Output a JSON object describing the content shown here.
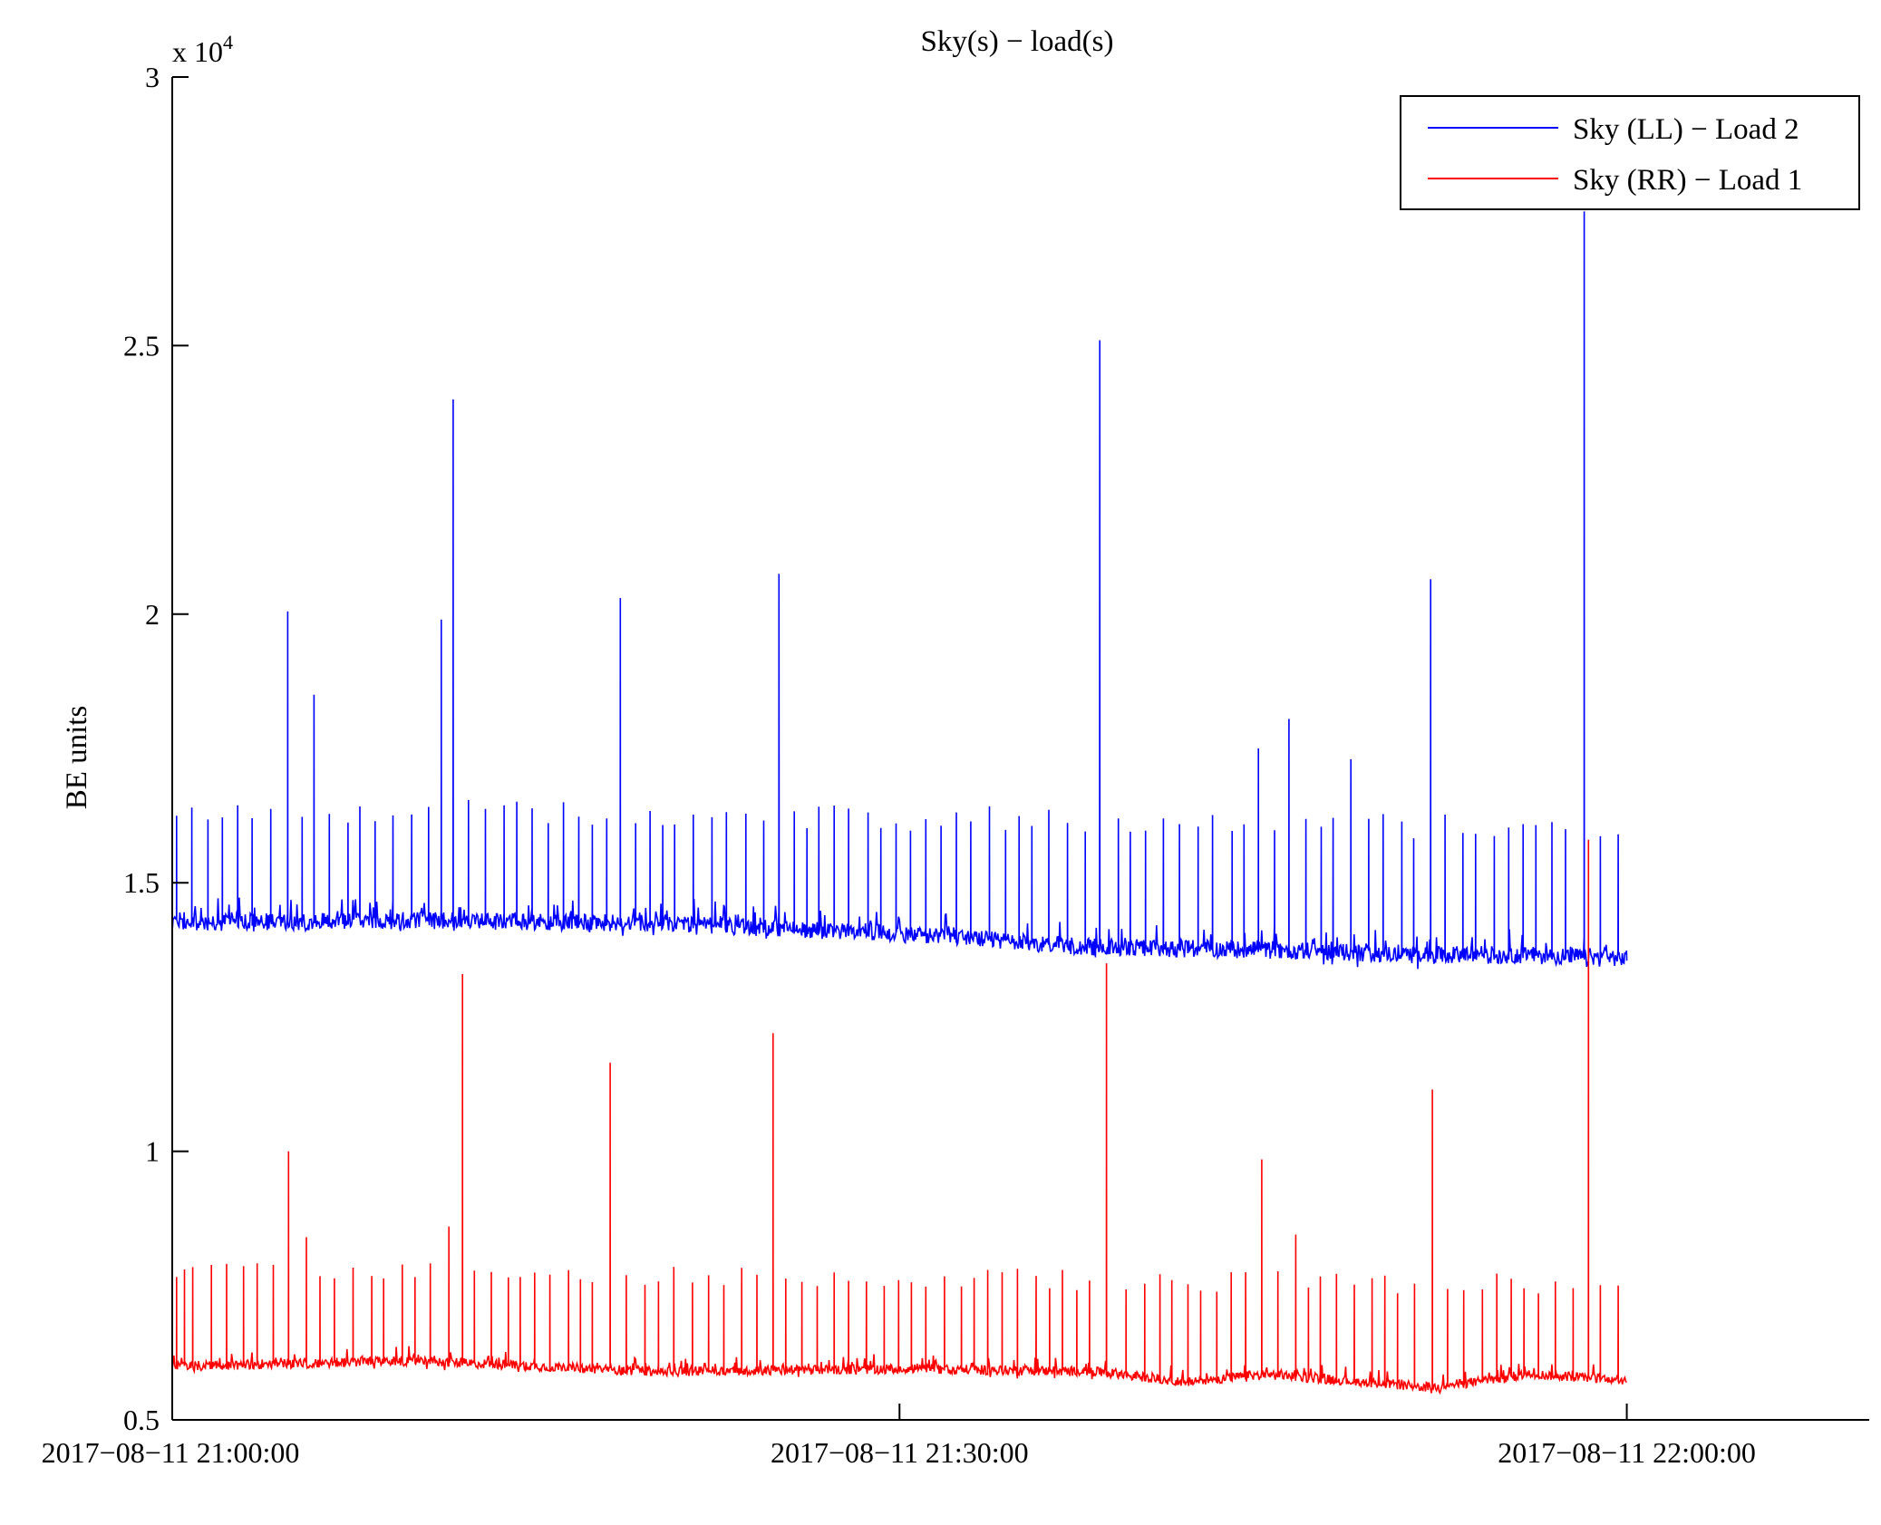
{
  "chart_data": {
    "type": "line",
    "title": "Sky(s) − load(s)",
    "xlabel": "",
    "ylabel": "BE units",
    "y_multiplier_base": "x 10",
    "y_multiplier_exp": "4",
    "y_scale": 10000,
    "ylim": [
      0.5,
      3
    ],
    "y_ticks": [
      0.5,
      1,
      1.5,
      2,
      2.5,
      3
    ],
    "y_tick_labels": [
      "0.5",
      "1",
      "1.5",
      "2",
      "2.5",
      "3"
    ],
    "x_unit": "minutes after 2017-08-11 21:00:00",
    "xlim": [
      0,
      70
    ],
    "x_ticks": [
      0,
      30,
      60
    ],
    "x_tick_labels": [
      "2017−08−11 21:00:00",
      "2017−08−11 21:30:00",
      "2017−08−11 22:00:00"
    ],
    "grid": false,
    "legend_position": "top-right",
    "series": [
      {
        "name": "Sky (LL) − Load 2",
        "color": "#0000ff",
        "baseline": [
          [
            0,
            14250
          ],
          [
            10,
            14300
          ],
          [
            20,
            14250
          ],
          [
            30,
            14050
          ],
          [
            38,
            13800
          ],
          [
            45,
            13750
          ],
          [
            52,
            13650
          ],
          [
            56,
            13650
          ],
          [
            60,
            13600
          ]
        ],
        "spikes": [
          [
            0.5,
            16400
          ],
          [
            4.9,
            20050
          ],
          [
            5.7,
            18500
          ],
          [
            11.2,
            19900
          ],
          [
            11.8,
            24000
          ],
          [
            18.3,
            20300
          ],
          [
            24.9,
            20750
          ],
          [
            38.4,
            25100
          ],
          [
            45.0,
            17500
          ],
          [
            46.3,
            18050
          ],
          [
            48.6,
            17300
          ],
          [
            51.7,
            20650
          ],
          [
            58.3,
            27500
          ],
          [
            59.7,
            15900
          ]
        ],
        "spike_height_typical": 16400,
        "end_value": 13550
      },
      {
        "name": "Sky (RR) − Load 1",
        "color": "#ff0000",
        "baseline": [
          [
            0,
            6000
          ],
          [
            10,
            6100
          ],
          [
            20,
            5900
          ],
          [
            30,
            5950
          ],
          [
            38,
            5900
          ],
          [
            42,
            5700
          ],
          [
            45,
            5850
          ],
          [
            48,
            5750
          ],
          [
            52,
            5600
          ],
          [
            56,
            5850
          ],
          [
            60,
            5750
          ]
        ],
        "spikes": [
          [
            0.5,
            7800
          ],
          [
            4.9,
            10000
          ],
          [
            5.7,
            8400
          ],
          [
            11.2,
            8600
          ],
          [
            11.8,
            13300
          ],
          [
            18.3,
            11650
          ],
          [
            24.9,
            12200
          ],
          [
            38.4,
            13500
          ],
          [
            45.0,
            9850
          ],
          [
            46.3,
            8450
          ],
          [
            51.7,
            11150
          ],
          [
            58.3,
            15800
          ],
          [
            59.7,
            7500
          ]
        ],
        "spike_height_typical": 7800,
        "end_value": 5700
      }
    ]
  }
}
